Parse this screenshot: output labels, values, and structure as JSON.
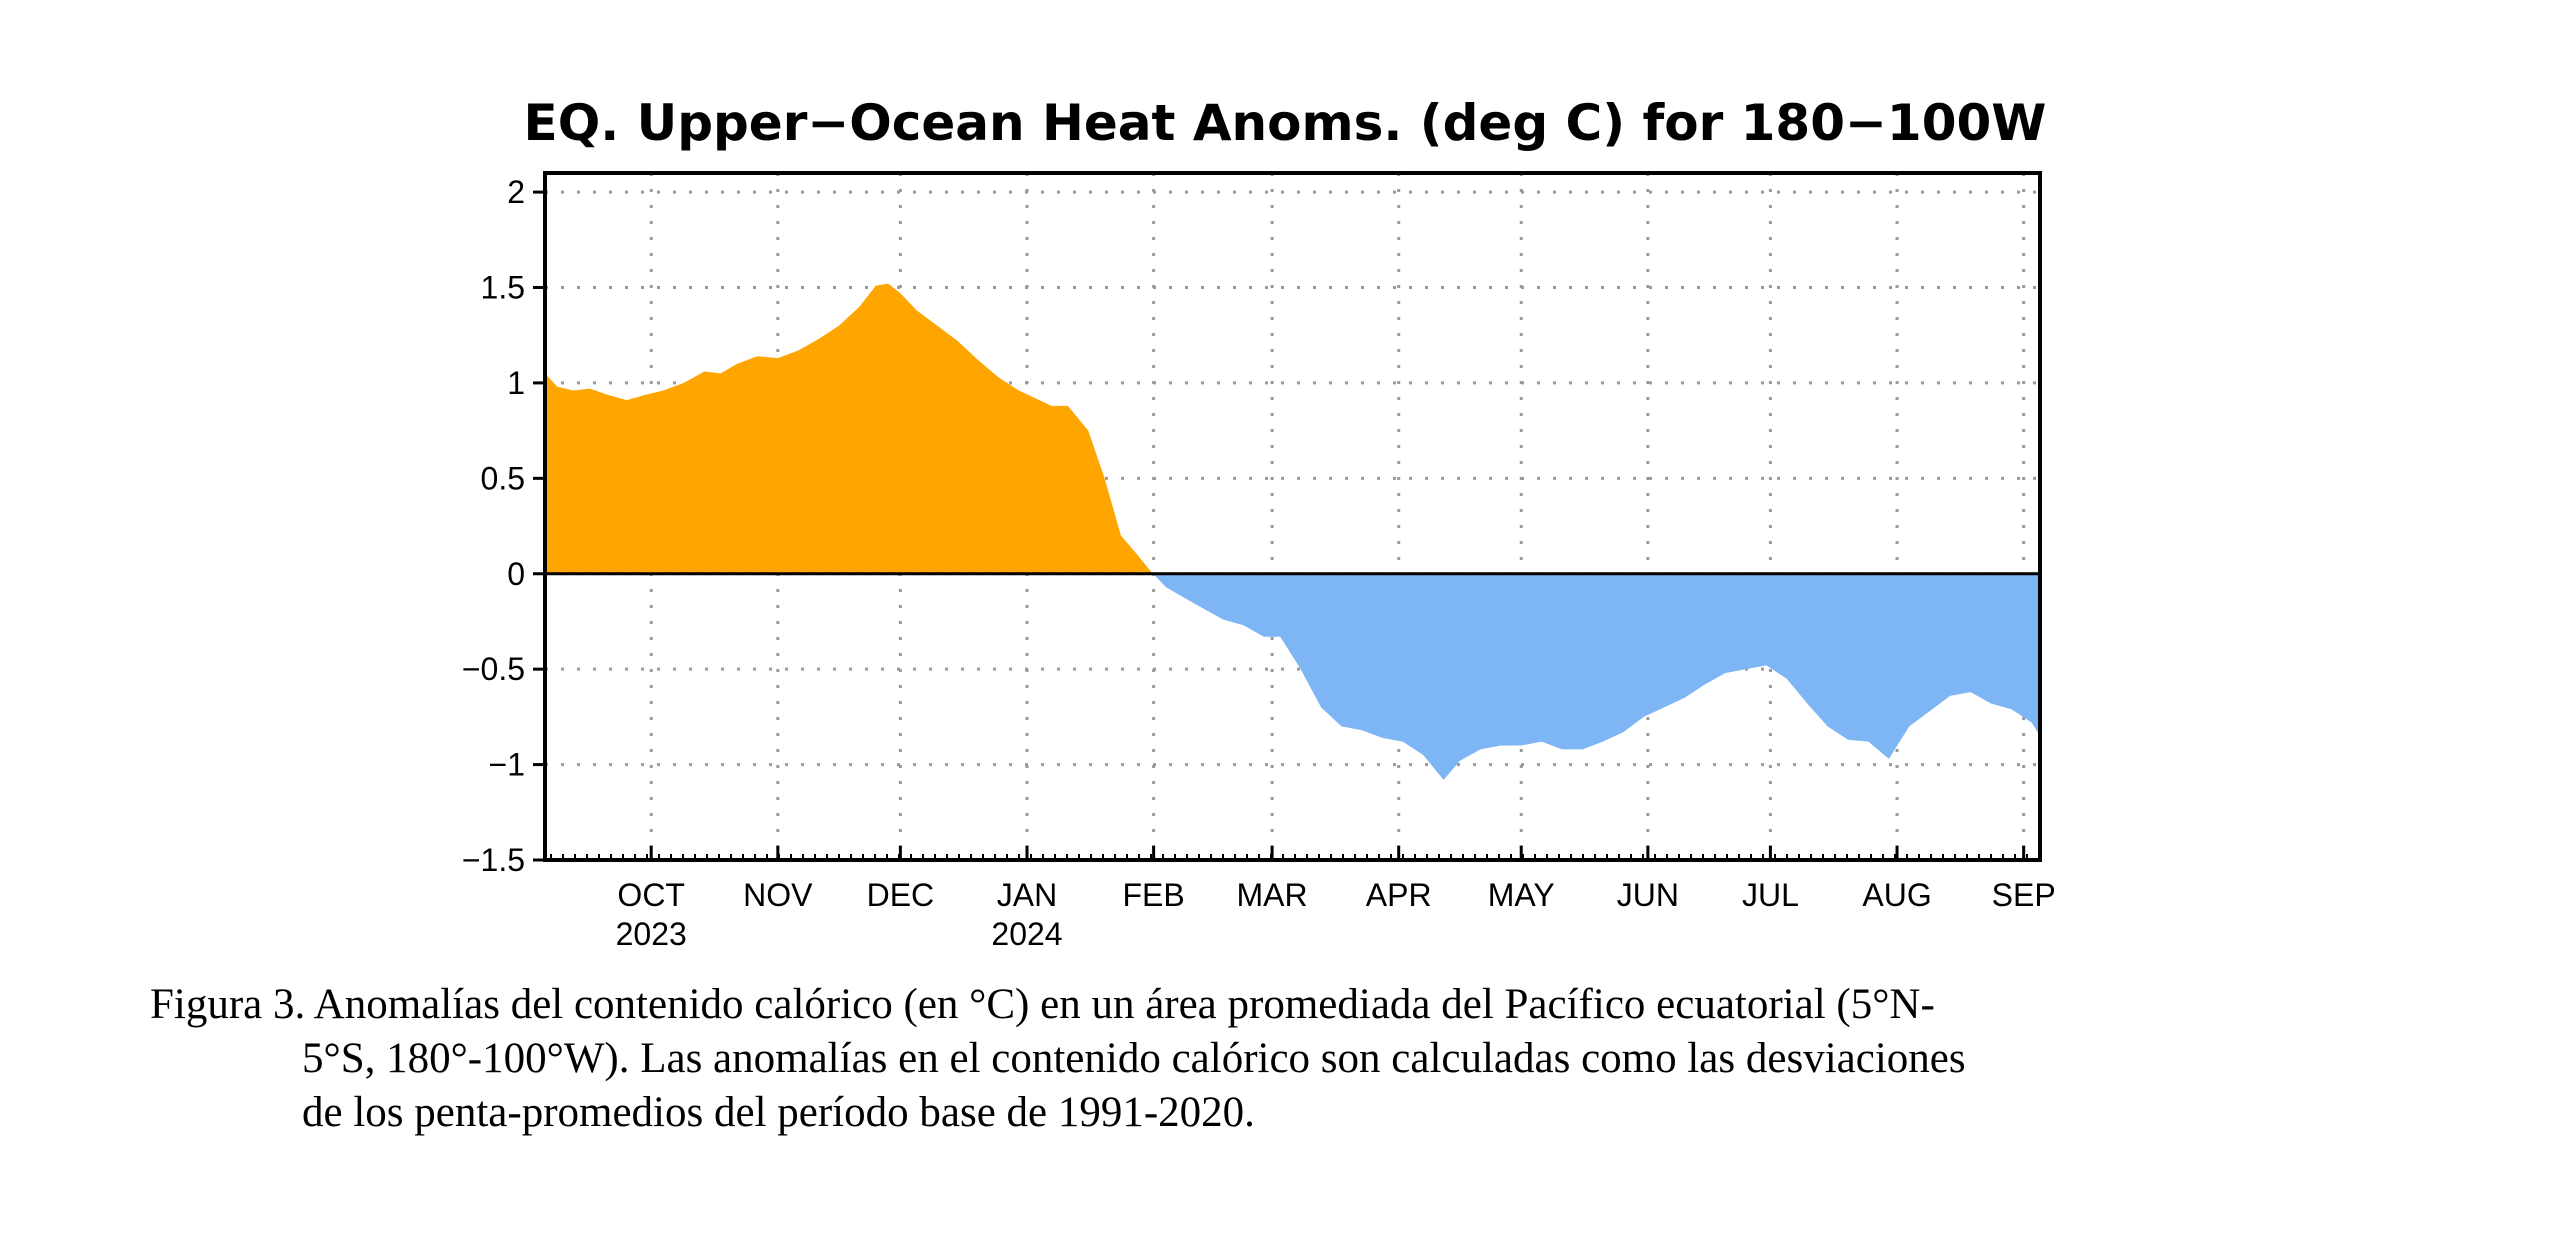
{
  "chart_data": {
    "type": "area",
    "title": "EQ. Upper−Ocean Heat Anoms. (deg C) for 180−100W",
    "xlabel": "",
    "ylabel": "",
    "ylim": [
      -1.5,
      2.1
    ],
    "yticks": [
      2,
      1.5,
      1,
      0.5,
      0,
      -0.5,
      -1,
      -1.5
    ],
    "ytick_labels": [
      "2",
      "1.5",
      "1",
      "0.5",
      "0",
      "−0.5",
      "−1",
      "−1.5"
    ],
    "x_range": [
      "2023-09-05",
      "2024-09-05"
    ],
    "month_ticks": [
      {
        "date": "2023-10-01",
        "label": "OCT",
        "year": "2023"
      },
      {
        "date": "2023-11-01",
        "label": "NOV",
        "year": ""
      },
      {
        "date": "2023-12-01",
        "label": "DEC",
        "year": ""
      },
      {
        "date": "2024-01-01",
        "label": "JAN",
        "year": "2024"
      },
      {
        "date": "2024-02-01",
        "label": "FEB",
        "year": ""
      },
      {
        "date": "2024-03-01",
        "label": "MAR",
        "year": ""
      },
      {
        "date": "2024-04-01",
        "label": "APR",
        "year": ""
      },
      {
        "date": "2024-05-01",
        "label": "MAY",
        "year": ""
      },
      {
        "date": "2024-06-01",
        "label": "JUN",
        "year": ""
      },
      {
        "date": "2024-07-01",
        "label": "JUL",
        "year": ""
      },
      {
        "date": "2024-08-01",
        "label": "AUG",
        "year": ""
      },
      {
        "date": "2024-09-01",
        "label": "SEP",
        "year": ""
      }
    ],
    "grid": true,
    "colors": {
      "positive": "#ffa500",
      "negative": "#7eb6f5"
    },
    "series": [
      {
        "x": [
          "2023-09-05",
          "2023-09-08",
          "2023-09-12",
          "2023-09-16",
          "2023-09-20",
          "2023-09-25",
          "2023-09-30",
          "2023-10-04",
          "2023-10-09",
          "2023-10-14",
          "2023-10-18",
          "2023-10-22",
          "2023-10-27",
          "2023-11-01",
          "2023-11-06",
          "2023-11-11",
          "2023-11-16",
          "2023-11-21",
          "2023-11-25",
          "2023-11-28",
          "2023-12-01",
          "2023-12-05",
          "2023-12-10",
          "2023-12-15",
          "2023-12-20",
          "2023-12-25",
          "2023-12-30",
          "2024-01-03",
          "2024-01-07",
          "2024-01-11",
          "2024-01-16",
          "2024-01-20",
          "2024-01-24",
          "2024-01-28",
          "2024-01-31",
          "2024-02-04",
          "2024-02-08",
          "2024-02-13",
          "2024-02-18",
          "2024-02-23",
          "2024-02-28",
          "2024-03-03",
          "2024-03-08",
          "2024-03-13",
          "2024-03-18",
          "2024-03-23",
          "2024-03-28",
          "2024-04-02",
          "2024-04-07",
          "2024-04-12",
          "2024-04-16",
          "2024-04-21",
          "2024-04-26",
          "2024-05-01",
          "2024-05-06",
          "2024-05-11",
          "2024-05-16",
          "2024-05-21",
          "2024-05-26",
          "2024-05-31",
          "2024-06-05",
          "2024-06-10",
          "2024-06-15",
          "2024-06-20",
          "2024-06-25",
          "2024-06-30",
          "2024-07-05",
          "2024-07-10",
          "2024-07-15",
          "2024-07-20",
          "2024-07-25",
          "2024-07-30",
          "2024-08-04",
          "2024-08-09",
          "2024-08-14",
          "2024-08-19",
          "2024-08-24",
          "2024-08-29",
          "2024-09-03",
          "2024-09-05"
        ],
        "values": [
          1.05,
          0.98,
          0.96,
          0.97,
          0.94,
          0.91,
          0.94,
          0.96,
          1.0,
          1.06,
          1.05,
          1.1,
          1.14,
          1.13,
          1.17,
          1.23,
          1.3,
          1.4,
          1.51,
          1.52,
          1.47,
          1.38,
          1.3,
          1.22,
          1.12,
          1.03,
          0.96,
          0.92,
          0.88,
          0.88,
          0.75,
          0.5,
          0.2,
          0.1,
          0.02,
          -0.07,
          -0.12,
          -0.18,
          -0.24,
          -0.27,
          -0.33,
          -0.33,
          -0.5,
          -0.7,
          -0.8,
          -0.82,
          -0.86,
          -0.88,
          -0.95,
          -1.08,
          -0.98,
          -0.92,
          -0.9,
          -0.9,
          -0.88,
          -0.92,
          -0.92,
          -0.88,
          -0.83,
          -0.75,
          -0.7,
          -0.65,
          -0.58,
          -0.52,
          -0.5,
          -0.48,
          -0.55,
          -0.68,
          -0.8,
          -0.87,
          -0.88,
          -0.97,
          -0.8,
          -0.72,
          -0.64,
          -0.62,
          -0.68,
          -0.71,
          -0.78,
          -0.85
        ]
      }
    ]
  },
  "caption": {
    "line1": "Figura 3. Anomalías del contenido calórico (en °C) en un área promediada del Pacífico ecuatorial (5°N-",
    "line2": "5°S, 180°-100°W). Las anomalías en el contenido calórico son calculadas como las desviaciones",
    "line3": "de los penta-promedios del período base de 1991-2020."
  }
}
